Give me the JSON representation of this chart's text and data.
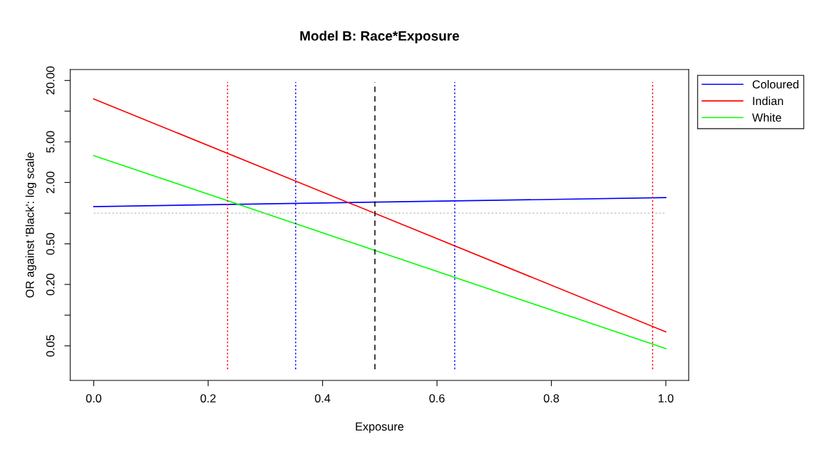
{
  "chart_data": {
    "type": "line",
    "title": "Model B: Race*Exposure",
    "xlabel": "Exposure",
    "ylabel": "OR against 'Black': log scale",
    "log": "y",
    "x": [
      0,
      1
    ],
    "series": [
      {
        "name": "Coloured",
        "color": "#0000ff",
        "values": [
          1.16,
          1.42
        ]
      },
      {
        "name": "Indian",
        "color": "#ff0000",
        "values": [
          13.2,
          0.0686
        ]
      },
      {
        "name": "White",
        "color": "#00ff00",
        "values": [
          3.67,
          0.047
        ]
      }
    ],
    "xlim": [
      -0.041,
      1.04
    ],
    "xticks": [
      {
        "value": 0,
        "label": "0.0"
      },
      {
        "value": 0.2,
        "label": "0.2"
      },
      {
        "value": 0.4,
        "label": "0.4"
      },
      {
        "value": 0.6,
        "label": "0.6"
      },
      {
        "value": 0.8,
        "label": "0.8"
      },
      {
        "value": 1,
        "label": "1.0"
      }
    ],
    "ylim": [
      0.0229,
      25.6
    ],
    "yticks": [
      {
        "value": 0.05,
        "label": "0.05"
      },
      {
        "value": 0.1,
        "label": null
      },
      {
        "value": 0.2,
        "label": "0.20"
      },
      {
        "value": 0.5,
        "label": "0.50"
      },
      {
        "value": 1,
        "label": null
      },
      {
        "value": 2,
        "label": "2.00"
      },
      {
        "value": 5,
        "label": "5.00"
      },
      {
        "value": 10,
        "label": null
      },
      {
        "value": 20,
        "label": "20.00"
      }
    ],
    "ref_lines": [
      {
        "axis": "y",
        "value": 1,
        "color": "#c0c0c0",
        "line_style": "dotted"
      },
      {
        "axis": "x",
        "value": 0.234,
        "color": "#ff0000",
        "line_style": "dotted"
      },
      {
        "axis": "x",
        "value": 0.977,
        "color": "#ff0000",
        "line_style": "dotted"
      },
      {
        "axis": "x",
        "value": 0.353,
        "color": "#0000ff",
        "line_style": "dotted"
      },
      {
        "axis": "x",
        "value": 0.631,
        "color": "#0000ff",
        "line_style": "dotted"
      },
      {
        "axis": "x",
        "value": 0.4915,
        "color": "#000000",
        "line_style": "dashed"
      }
    ],
    "grid": false,
    "legend": "top right",
    "line_style": "solid",
    "marker": "none"
  }
}
